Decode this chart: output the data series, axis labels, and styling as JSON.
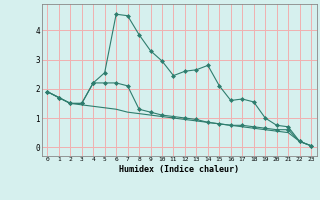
{
  "x": [
    0,
    1,
    2,
    3,
    4,
    5,
    6,
    7,
    8,
    9,
    10,
    11,
    12,
    13,
    14,
    15,
    16,
    17,
    18,
    19,
    20,
    21,
    22,
    23
  ],
  "line1": [
    1.9,
    1.7,
    1.5,
    1.5,
    2.2,
    2.2,
    2.2,
    2.1,
    1.3,
    1.2,
    1.1,
    1.05,
    1.0,
    0.95,
    0.85,
    0.8,
    0.75,
    0.75,
    0.7,
    0.65,
    0.6,
    0.6,
    0.2,
    0.05
  ],
  "line2": [
    1.9,
    1.7,
    1.5,
    1.5,
    2.2,
    2.55,
    4.55,
    4.5,
    3.85,
    3.3,
    2.95,
    2.45,
    2.6,
    2.65,
    2.8,
    2.1,
    1.6,
    1.65,
    1.55,
    1.0,
    0.75,
    0.7,
    0.2,
    0.05
  ],
  "line3": [
    1.9,
    1.7,
    1.5,
    1.45,
    1.4,
    1.35,
    1.3,
    1.2,
    1.15,
    1.1,
    1.05,
    1.0,
    0.95,
    0.9,
    0.85,
    0.8,
    0.75,
    0.7,
    0.65,
    0.6,
    0.55,
    0.5,
    0.2,
    0.05
  ],
  "line_color": "#2e7d6e",
  "bg_color": "#d6f0ee",
  "grid_color": "#f0b0b0",
  "xlabel": "Humidex (Indice chaleur)",
  "ylim": [
    -0.3,
    4.9
  ],
  "xlim": [
    -0.5,
    23.5
  ],
  "yticks": [
    0,
    1,
    2,
    3,
    4
  ],
  "xticks": [
    0,
    1,
    2,
    3,
    4,
    5,
    6,
    7,
    8,
    9,
    10,
    11,
    12,
    13,
    14,
    15,
    16,
    17,
    18,
    19,
    20,
    21,
    22,
    23
  ]
}
